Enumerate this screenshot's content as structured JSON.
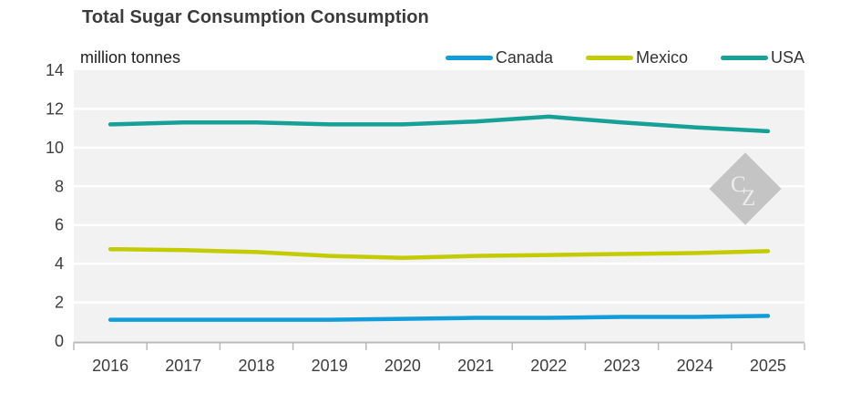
{
  "chart_data": {
    "type": "line",
    "title": "Total Sugar Consumption Consumption",
    "ylabel": "million tonnes",
    "xlabel": "",
    "categories": [
      "2016",
      "2017",
      "2018",
      "2019",
      "2020",
      "2021",
      "2022",
      "2023",
      "2024",
      "2025"
    ],
    "series": [
      {
        "name": "Canada",
        "color": "#129DDA",
        "values": [
          1.1,
          1.1,
          1.1,
          1.1,
          1.15,
          1.2,
          1.2,
          1.25,
          1.25,
          1.3
        ]
      },
      {
        "name": "Mexico",
        "color": "#C3CC02",
        "values": [
          4.75,
          4.7,
          4.6,
          4.4,
          4.3,
          4.4,
          4.45,
          4.5,
          4.55,
          4.65
        ]
      },
      {
        "name": "USA",
        "color": "#16A098",
        "values": [
          11.2,
          11.3,
          11.3,
          11.2,
          11.2,
          11.35,
          11.6,
          11.3,
          11.05,
          10.85
        ]
      }
    ],
    "ylim": [
      0,
      14
    ],
    "yticks": [
      0,
      2,
      4,
      6,
      8,
      10,
      12,
      14
    ],
    "grid": true,
    "legend_position": "top-right",
    "plot_bg": "#f2f2f2",
    "grid_color": "#ffffff",
    "axis_color": "#b9b9b9",
    "label_color": "#3d3d3d"
  },
  "watermark": {
    "text": "CZ",
    "letter_1": "C",
    "letter_2": "Z",
    "diamond_color": "#c4c4c4",
    "text_color": "#ececec"
  }
}
